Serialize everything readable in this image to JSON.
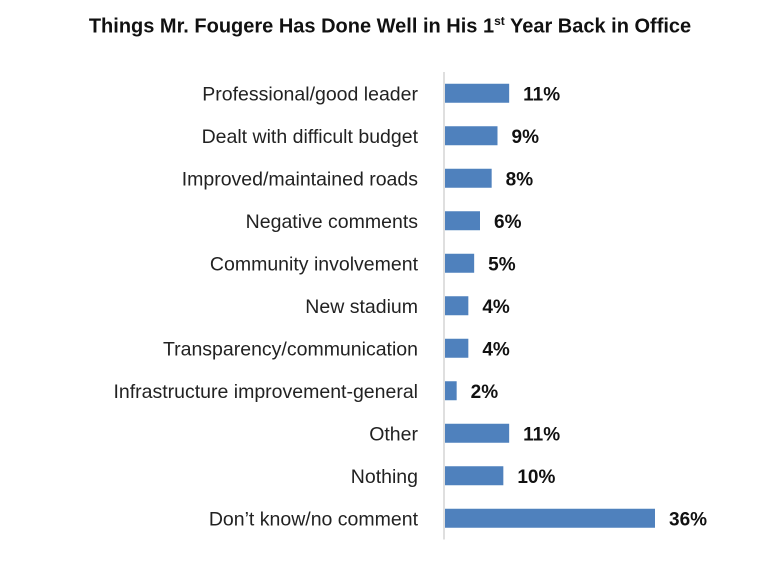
{
  "chart_data": {
    "type": "bar",
    "orientation": "horizontal",
    "title": {
      "prefix": "Things Mr. Fougere Has Done Well in His 1",
      "superscript": "st",
      "suffix": " Year Back in Office"
    },
    "categories": [
      "Professional/good leader",
      "Dealt with difficult budget",
      "Improved/maintained roads",
      "Negative comments",
      "Community involvement",
      "New stadium",
      "Transparency/communication",
      "Infrastructure improvement-general",
      "Other",
      "Nothing",
      "Don’t know/no comment"
    ],
    "values": [
      11,
      9,
      8,
      6,
      5,
      4,
      4,
      2,
      11,
      10,
      36
    ],
    "value_labels": [
      "11%",
      "9%",
      "8%",
      "6%",
      "5%",
      "4%",
      "4%",
      "2%",
      "11%",
      "10%",
      "36%"
    ],
    "unit": "%",
    "xlim": [
      0,
      36
    ],
    "grid": false,
    "legend": "none",
    "bar_color": "#4f81bd",
    "axis_color": "#bfbfbf"
  }
}
